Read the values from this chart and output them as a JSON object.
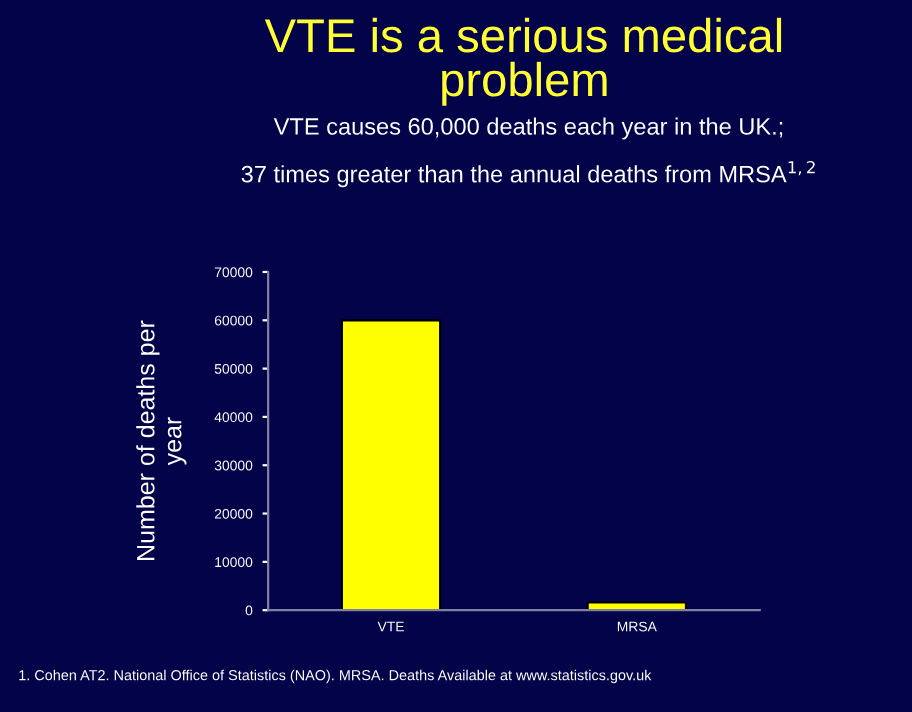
{
  "chart_data": {
    "type": "bar",
    "title": "VTE is a serious medical\nproblem",
    "subtitle": "VTE causes 60,000 deaths each year in the UK.;\n37 times greater than the annual deaths from MRSA$^{1,2}$",
    "ylabel": "Number of deaths per\nyear",
    "categories": [
      "VTE",
      "MRSA"
    ],
    "values": [
      60000,
      1600
    ],
    "color": "#ffff00",
    "ylim": [
      0,
      70000
    ],
    "yticks": [
      0,
      10000,
      20000,
      30000,
      40000,
      50000,
      60000,
      70000
    ],
    "grid": false,
    "legend": false,
    "annotations": [
      "1. Cohen AT2. National Office of Statistics (NAO). MRSA. Deaths Available at www.statistics.gov.uk"
    ]
  }
}
